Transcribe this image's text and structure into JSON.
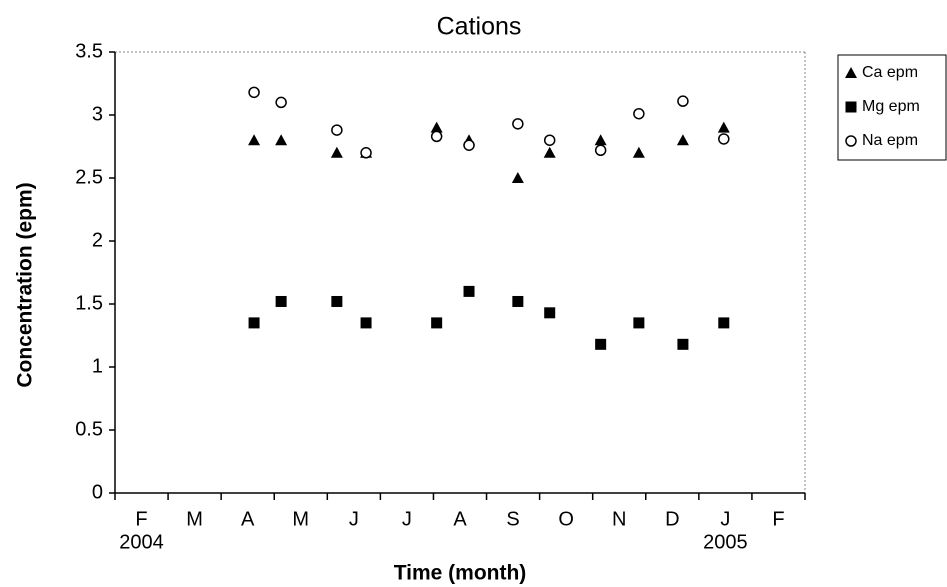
{
  "chart_data": {
    "type": "scatter",
    "title": "Cations",
    "x_label": "Time (month)",
    "y_label": "Concentration (epm)",
    "categories": [
      "F",
      "M",
      "A",
      "M",
      "J",
      "J",
      "A",
      "S",
      "O",
      "N",
      "D",
      "J",
      "F"
    ],
    "x_year_labels": [
      "2004",
      "2005"
    ],
    "xlim": [
      0,
      13
    ],
    "xticks": [
      0,
      1,
      2,
      3,
      4,
      5,
      6,
      7,
      8,
      9,
      10,
      11,
      12,
      13
    ],
    "ylim": [
      0,
      3.5
    ],
    "yticks": [
      0,
      0.5,
      1,
      1.5,
      2,
      2.5,
      3,
      3.5
    ],
    "legend": "right",
    "series": [
      {
        "name": "Ca epm",
        "color": "#000000",
        "marker": "triangle",
        "x": [
          2.62,
          3.13,
          4.18,
          4.73,
          6.06,
          6.67,
          7.59,
          8.19,
          9.15,
          9.87,
          10.7,
          11.47
        ],
        "values": [
          2.8,
          2.8,
          2.7,
          2.7,
          2.9,
          2.8,
          2.5,
          2.7,
          2.8,
          2.7,
          2.8,
          2.9
        ]
      },
      {
        "name": "Mg epm",
        "color": "#000000",
        "marker": "square",
        "x": [
          2.62,
          3.13,
          4.18,
          4.73,
          6.06,
          6.67,
          7.59,
          8.19,
          9.15,
          9.87,
          10.7,
          11.47
        ],
        "values": [
          1.35,
          1.52,
          1.52,
          1.35,
          1.35,
          1.6,
          1.52,
          1.43,
          1.18,
          1.35,
          1.18,
          1.35
        ]
      },
      {
        "name": "Na epm",
        "color": "#000000",
        "marker": "circle",
        "x": [
          2.62,
          3.13,
          4.18,
          4.73,
          6.06,
          6.67,
          7.59,
          8.19,
          9.15,
          9.87,
          10.7,
          11.47
        ],
        "values": [
          3.18,
          3.1,
          2.88,
          2.7,
          2.83,
          2.76,
          2.93,
          2.8,
          2.72,
          3.01,
          3.11,
          2.81
        ]
      }
    ]
  }
}
